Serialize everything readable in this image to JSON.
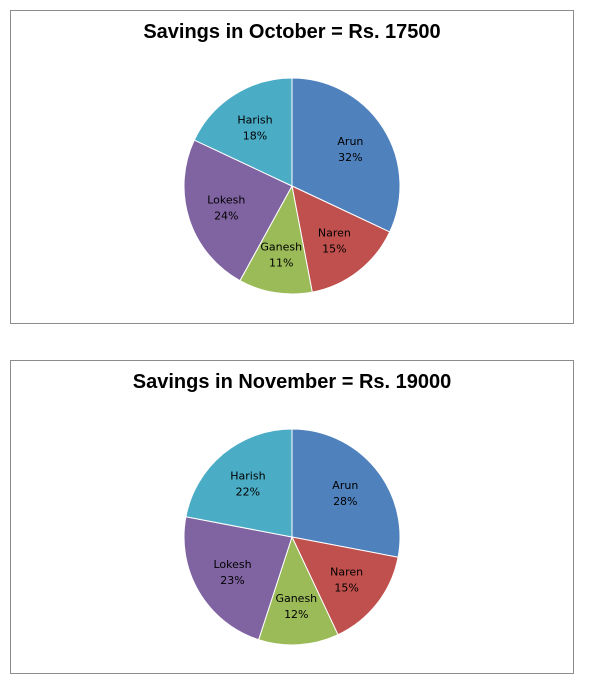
{
  "chart_data": [
    {
      "type": "pie",
      "title": "Savings in October = Rs. 17500",
      "slices": [
        {
          "label": "Arun",
          "percent": "32%",
          "value": 32,
          "color": "#4f81bd"
        },
        {
          "label": "Naren",
          "percent": "15%",
          "value": 15,
          "color": "#c0504d"
        },
        {
          "label": "Ganesh",
          "percent": "11%",
          "value": 11,
          "color": "#9bbb59"
        },
        {
          "label": "Lokesh",
          "percent": "24%",
          "value": 24,
          "color": "#8064a2"
        },
        {
          "label": "Harish",
          "percent": "18%",
          "value": 18,
          "color": "#4bacc6"
        }
      ],
      "legend": "none"
    },
    {
      "type": "pie",
      "title": "Savings in November = Rs. 19000",
      "slices": [
        {
          "label": "Arun",
          "percent": "28%",
          "value": 28,
          "color": "#4f81bd"
        },
        {
          "label": "Naren",
          "percent": "15%",
          "value": 15,
          "color": "#c0504d"
        },
        {
          "label": "Ganesh",
          "percent": "12%",
          "value": 12,
          "color": "#9bbb59"
        },
        {
          "label": "Lokesh",
          "percent": "23%",
          "value": 23,
          "color": "#8064a2"
        },
        {
          "label": "Harish",
          "percent": "22%",
          "value": 22,
          "color": "#4bacc6"
        }
      ],
      "legend": "none"
    }
  ]
}
